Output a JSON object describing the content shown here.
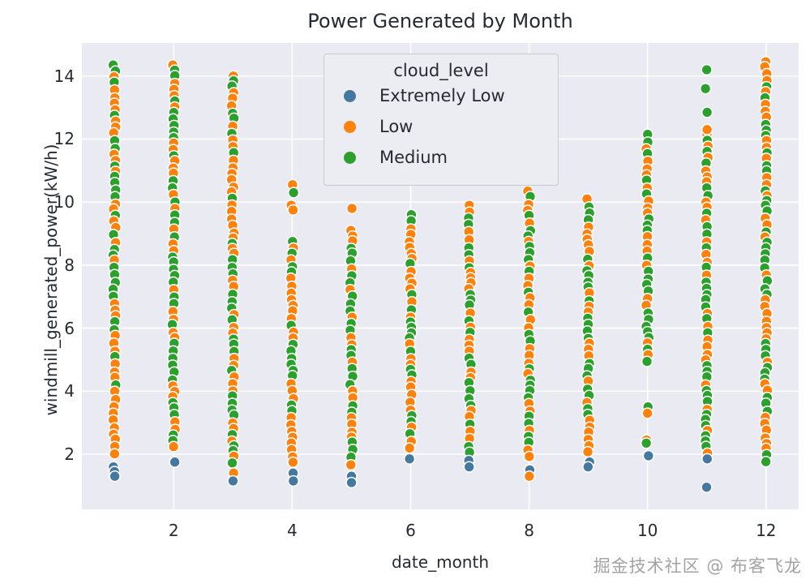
{
  "title": "Power Generated by Month",
  "watermark": "掘金技术社区 @ 布客飞龙",
  "colors": {
    "plot_bg": "#eaeaf2",
    "grid": "#ffffff",
    "text": "#262b33",
    "point_edge": "#ffffff",
    "extremely_low": "#45789f",
    "low": "#fd810d",
    "medium": "#2ca02c"
  },
  "legend": {
    "title": "cloud_level",
    "items": [
      {
        "label": "Extremely Low",
        "color": "#45789f"
      },
      {
        "label": "Low",
        "color": "#fd810d"
      },
      {
        "label": "Medium",
        "color": "#2ca02c"
      }
    ]
  },
  "chart_data": {
    "type": "scatter",
    "title": "Power Generated by Month",
    "xlabel": "date_month",
    "ylabel": "windmill_generated_power(kW/h)",
    "x_ticks": [
      2,
      4,
      6,
      8,
      10,
      12
    ],
    "y_ticks": [
      2,
      4,
      6,
      8,
      10,
      12,
      14
    ],
    "xlim": [
      0.45,
      12.55
    ],
    "ylim": [
      0.25,
      15.05
    ],
    "grid": true,
    "legend_title": "cloud_level",
    "series_names": [
      "Extremely Low",
      "Low",
      "Medium"
    ],
    "series_colors": {
      "b": "#45789f",
      "o": "#fd810d",
      "g": "#2ca02c"
    },
    "point_radius": 6.4,
    "seed": 20,
    "step_base": 0.15,
    "step_jitter": 0.11,
    "columns": [
      {
        "month": 1,
        "dense_bands": [
          [
            1.95,
            14.35
          ]
        ],
        "outliers": [
          [
            1.6,
            "b"
          ],
          [
            1.45,
            "b"
          ],
          [
            1.3,
            "b"
          ]
        ]
      },
      {
        "month": 2,
        "dense_bands": [
          [
            2.05,
            14.35
          ]
        ],
        "outliers": [
          [
            1.75,
            "b"
          ]
        ]
      },
      {
        "month": 3,
        "dense_bands": [
          [
            1.6,
            14.0
          ]
        ],
        "outliers": [
          [
            1.4,
            "o"
          ],
          [
            1.15,
            "b"
          ]
        ]
      },
      {
        "month": 4,
        "dense_bands": [
          [
            1.6,
            8.75
          ]
        ],
        "outliers": [
          [
            10.55,
            "o"
          ],
          [
            10.3,
            "g"
          ],
          [
            9.9,
            "o"
          ],
          [
            9.75,
            "o"
          ],
          [
            1.4,
            "b"
          ],
          [
            1.15,
            "b"
          ]
        ]
      },
      {
        "month": 5,
        "dense_bands": [
          [
            1.55,
            9.1
          ]
        ],
        "outliers": [
          [
            9.8,
            "o"
          ],
          [
            1.3,
            "b"
          ],
          [
            1.1,
            "b"
          ]
        ]
      },
      {
        "month": 6,
        "dense_bands": [
          [
            2.1,
            9.6
          ]
        ],
        "outliers": [
          [
            1.85,
            "b"
          ]
        ]
      },
      {
        "month": 7,
        "dense_bands": [
          [
            2.0,
            9.9
          ]
        ],
        "outliers": [
          [
            1.8,
            "b"
          ],
          [
            1.6,
            "b"
          ]
        ]
      },
      {
        "month": 8,
        "dense_bands": [
          [
            1.8,
            10.35
          ]
        ],
        "outliers": [
          [
            1.5,
            "b"
          ],
          [
            1.3,
            "o"
          ]
        ]
      },
      {
        "month": 9,
        "dense_bands": [
          [
            1.9,
            10.1
          ]
        ],
        "outliers": [
          [
            1.75,
            "b"
          ],
          [
            1.6,
            "b"
          ]
        ]
      },
      {
        "month": 10,
        "dense_bands": [
          [
            4.8,
            12.15
          ]
        ],
        "outliers": [
          [
            3.5,
            "g"
          ],
          [
            3.3,
            "o"
          ],
          [
            2.45,
            "o"
          ],
          [
            2.35,
            "g"
          ],
          [
            1.95,
            "b"
          ]
        ]
      },
      {
        "month": 11,
        "dense_bands": [
          [
            1.9,
            12.15
          ]
        ],
        "outliers": [
          [
            14.2,
            "g"
          ],
          [
            13.6,
            "g"
          ],
          [
            12.85,
            "g"
          ],
          [
            12.3,
            "o"
          ],
          [
            1.85,
            "b"
          ],
          [
            0.95,
            "b"
          ]
        ]
      },
      {
        "month": 12,
        "dense_bands": [
          [
            1.75,
            14.45
          ]
        ],
        "outliers": []
      }
    ]
  }
}
